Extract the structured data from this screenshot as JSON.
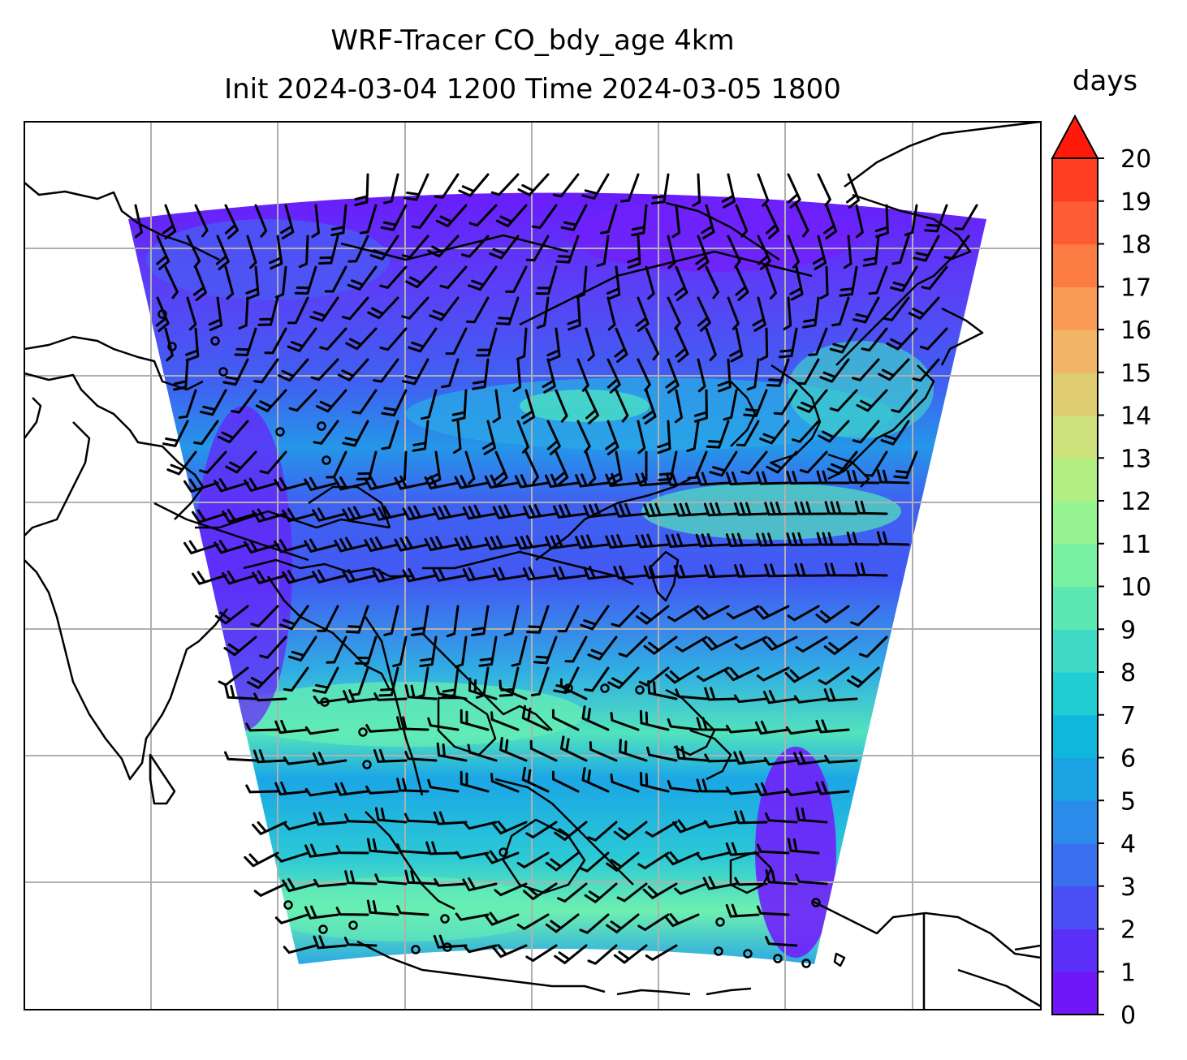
{
  "title": {
    "line1": "WRF-Tracer CO_bdy_age 4km",
    "line2": "Init 2024-03-04 1200 Time 2024-03-05 1800"
  },
  "colorbar": {
    "label": "days",
    "ticks": [
      "0",
      "1",
      "2",
      "3",
      "4",
      "5",
      "6",
      "7",
      "8",
      "9",
      "10",
      "11",
      "12",
      "13",
      "14",
      "15",
      "16",
      "17",
      "18",
      "19",
      "20"
    ],
    "extend": "max",
    "colors": [
      "#7216fa",
      "#5b2ff8",
      "#4a4ef5",
      "#3a6ff0",
      "#2b8bea",
      "#1aa3e3",
      "#0fb7dc",
      "#20cdd2",
      "#3ed9c4",
      "#5ce8b3",
      "#78f2a2",
      "#96f491",
      "#b2ee82",
      "#cde07a",
      "#e0cc70",
      "#f0b566",
      "#f99a55",
      "#fc7b43",
      "#fe5d33",
      "#ff3d20",
      "#ff1a0c"
    ]
  },
  "map": {
    "field_colors": {
      "low": "#6a1cfb",
      "mid": "#3d6ff2",
      "high": "#16a7e6",
      "peak": "#6ef0b0"
    },
    "gridline_color": "#b0b0b0",
    "coast_color": "#000000"
  }
}
